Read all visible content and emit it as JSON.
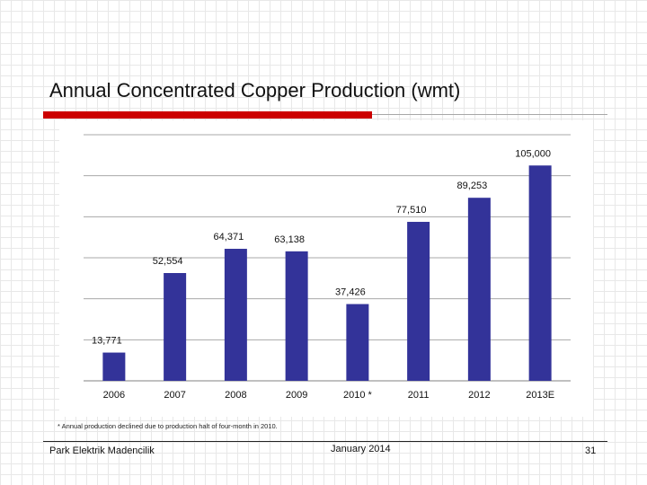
{
  "slide": {
    "title": "Annual Concentrated Copper Production (wmt)",
    "footnote": "* Annual production declined due to production halt of four-month in 2010.",
    "company": "Park Elektrik Madencilik",
    "date": "January   2014",
    "page_number": "31"
  },
  "colors": {
    "bar": "#333399",
    "title_rule": "#cc0000",
    "gridline": "#a8a8a8",
    "axis": "#808080",
    "text": "#111111"
  },
  "chart_data": {
    "type": "bar",
    "title": "",
    "xlabel": "",
    "ylabel": "",
    "grid": true,
    "ylim": [
      0,
      120000
    ],
    "categories": [
      "2006",
      "2007",
      "2008",
      "2009",
      "2010 *",
      "2011",
      "2012",
      "2013E"
    ],
    "values": [
      13771,
      52554,
      64371,
      63138,
      37426,
      77510,
      89253,
      105000
    ],
    "data_labels": [
      "13,771",
      "52,554",
      "64,371",
      "63,138",
      "37,426",
      "77,510",
      "89,253",
      "105,000"
    ]
  }
}
